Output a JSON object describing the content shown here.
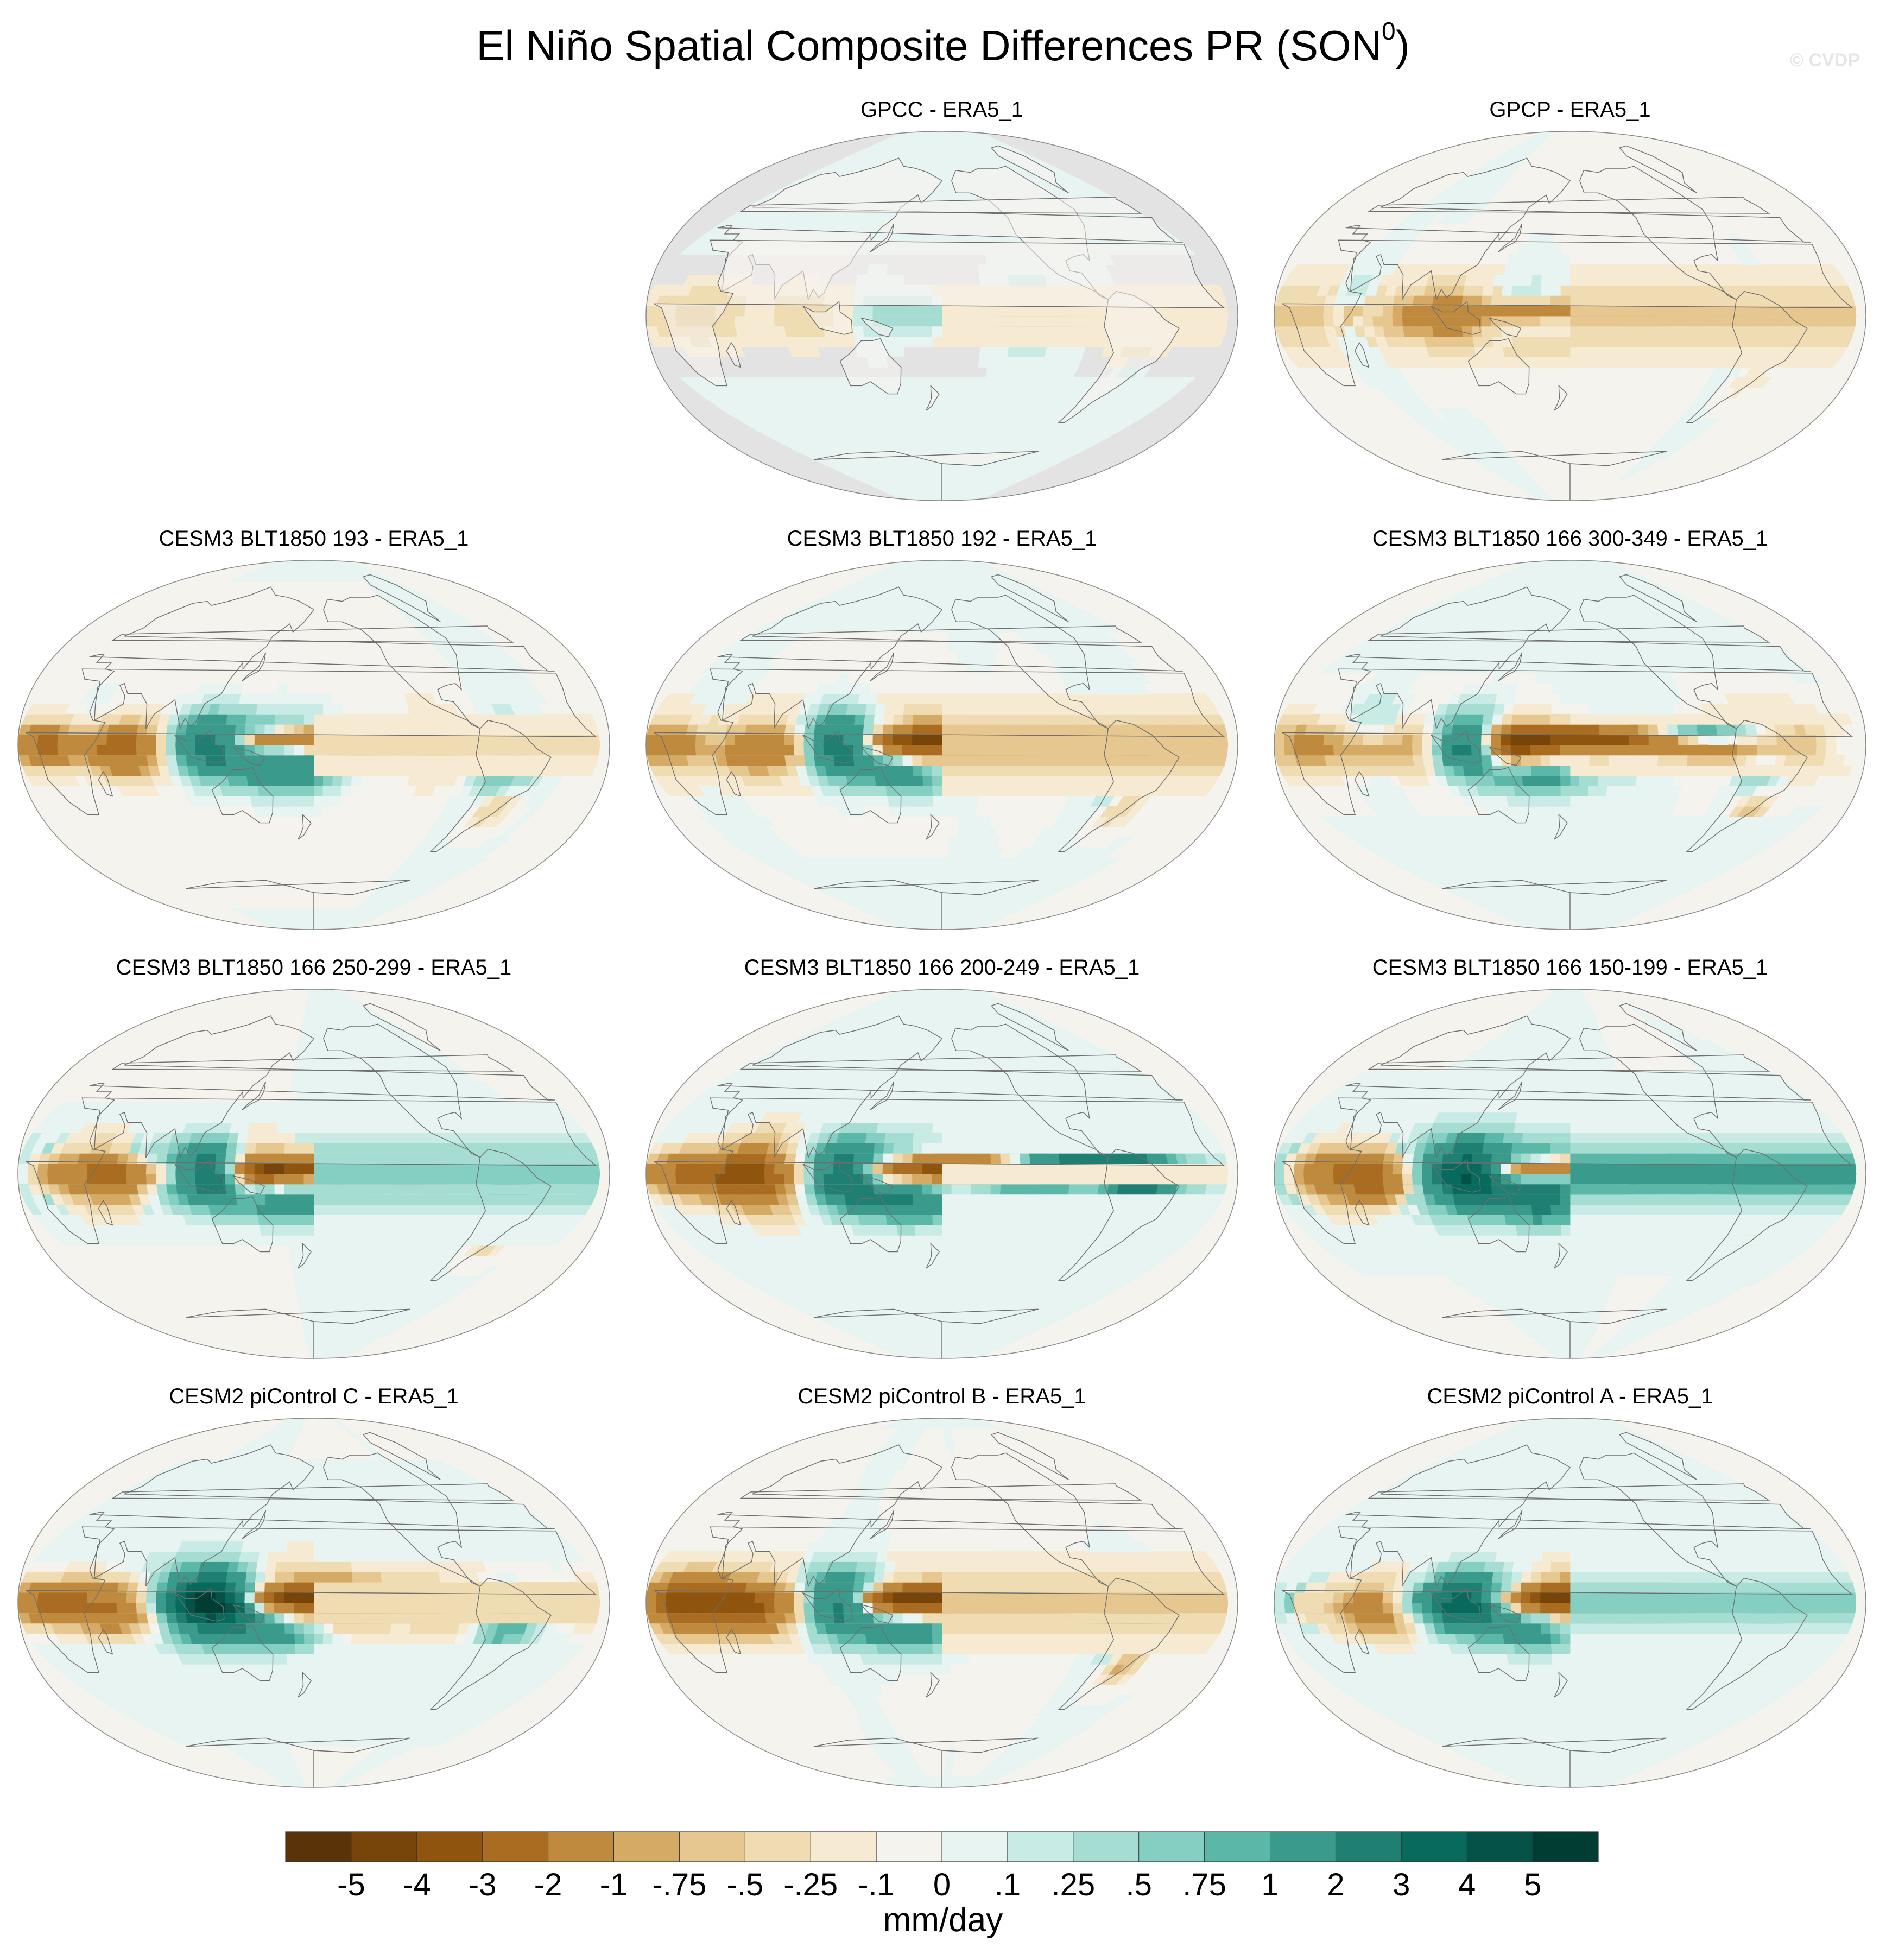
{
  "figure": {
    "title": "El Niño Spatial Composite Differences PR (SON",
    "title_superscript": "0",
    "title_close": ")",
    "watermark": "© CVDP"
  },
  "chart_data": {
    "type": "map-panels",
    "variable": "PR",
    "season": "SON0",
    "units": "mm/day",
    "colorbar": {
      "labels": [
        "-5",
        "-4",
        "-3",
        "-2",
        "-1",
        "-.75",
        "-.5",
        "-.25",
        "-.1",
        "0",
        ".1",
        ".25",
        ".5",
        ".75",
        "1",
        "2",
        "3",
        "4",
        "5"
      ],
      "levels": [
        -5,
        -4,
        -3,
        -2,
        -1,
        -0.75,
        -0.5,
        -0.25,
        -0.1,
        0,
        0.1,
        0.25,
        0.5,
        0.75,
        1,
        2,
        3,
        4,
        5
      ],
      "colors": [
        "#5a3408",
        "#774409",
        "#8f550f",
        "#a96c20",
        "#c08a3e",
        "#d4aa65",
        "#e5c78f",
        "#f0dcb3",
        "#f6ebd2",
        "#f5f3ee",
        "#e8f4f2",
        "#c9ebe5",
        "#a6ddd3",
        "#85cfc2",
        "#5bb7a8",
        "#3a9a8c",
        "#1e7f72",
        "#08695d",
        "#045248",
        "#013d33"
      ],
      "units_label": "mm/day"
    },
    "panels": [
      {
        "title": "GPCC - ERA5_1",
        "land_only": true,
        "pattern": {
          "enso": 0.0,
          "mc": 0.0,
          "amazon": -0.5,
          "africa": 0.2,
          "seed": 1
        }
      },
      {
        "title": "GPCP - ERA5_1",
        "land_only": false,
        "pattern": {
          "enso": 1.6,
          "mc": -1.2,
          "amazon": 0.4,
          "africa": -0.4,
          "seed": 2
        }
      },
      {
        "title": "CESM3 BLT1850 193 - ERA5_1",
        "land_only": false,
        "pattern": {
          "enso": 3.5,
          "mc": 3.0,
          "amazon": 1.0,
          "africa": -2.5,
          "seed": 3
        }
      },
      {
        "title": "CESM3 BLT1850 192 - ERA5_1",
        "land_only": false,
        "pattern": {
          "enso": 3.5,
          "mc": 3.5,
          "amazon": 1.0,
          "africa": -2.0,
          "seed": 4
        }
      },
      {
        "title": "CESM3 BLT1850 166 300-349 - ERA5_1",
        "land_only": false,
        "pattern": {
          "enso": 3.5,
          "mc": 3.0,
          "amazon": 1.0,
          "africa": -2.2,
          "seed": 5
        }
      },
      {
        "title": "CESM3 BLT1850 166 250-299 - ERA5_1",
        "land_only": false,
        "pattern": {
          "enso": 4.0,
          "mc": 3.5,
          "amazon": 1.5,
          "africa": -2.0,
          "seed": 6
        }
      },
      {
        "title": "CESM3 BLT1850 166 200-249 - ERA5_1",
        "land_only": false,
        "pattern": {
          "enso": 4.0,
          "mc": 3.5,
          "amazon": 2.0,
          "africa": -2.5,
          "seed": 7
        }
      },
      {
        "title": "CESM3 BLT1850 166 150-199 - ERA5_1",
        "land_only": false,
        "pattern": {
          "enso": 4.0,
          "mc": 3.5,
          "amazon": 2.0,
          "africa": -2.5,
          "seed": 8
        }
      },
      {
        "title": "CESM2 piControl C - ERA5_1",
        "land_only": false,
        "pattern": {
          "enso": 4.0,
          "mc": 3.5,
          "amazon": 1.5,
          "africa": -3.0,
          "seed": 9
        }
      },
      {
        "title": "CESM2 piControl B - ERA5_1",
        "land_only": false,
        "pattern": {
          "enso": 4.0,
          "mc": 3.5,
          "amazon": 1.5,
          "africa": -3.0,
          "seed": 10
        }
      },
      {
        "title": "CESM2 piControl A - ERA5_1",
        "land_only": false,
        "pattern": {
          "enso": 3.5,
          "mc": 3.0,
          "amazon": 1.5,
          "africa": -2.5,
          "seed": 11
        }
      }
    ]
  }
}
